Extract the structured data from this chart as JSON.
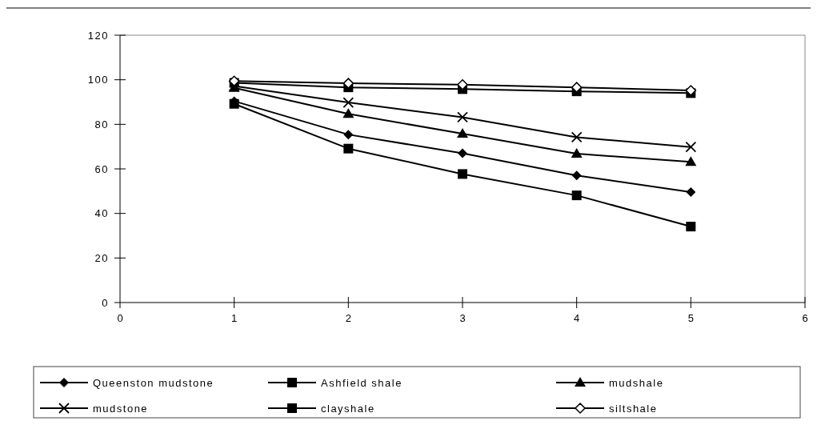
{
  "chart_data": {
    "type": "line",
    "x": [
      1,
      2,
      3,
      4,
      5
    ],
    "xlim": [
      0,
      6
    ],
    "xticks": [
      0,
      1,
      2,
      3,
      4,
      5,
      6
    ],
    "ylim": [
      0,
      120
    ],
    "yticks": [
      0,
      20,
      40,
      60,
      80,
      100,
      120
    ],
    "grid": false,
    "legend": "bottom",
    "line_style": "solid",
    "series": [
      {
        "name": "Queenston mudstone",
        "color": "#000000",
        "marker": "diamond",
        "values": [
          90.4,
          75.4,
          67.0,
          57.0,
          49.6
        ]
      },
      {
        "name": "Ashfield shale",
        "color": "#000000",
        "marker": "square",
        "values": [
          98.6,
          96.6,
          95.8,
          94.8,
          94.0
        ]
      },
      {
        "name": "mudshale",
        "color": "#000000",
        "marker": "triangle",
        "values": [
          96.4,
          84.7,
          75.8,
          66.8,
          63.1
        ]
      },
      {
        "name": "mudstone",
        "color": "#000000",
        "marker": "cross",
        "values": [
          97.2,
          89.8,
          83.2,
          74.2,
          69.8
        ]
      },
      {
        "name": "clayshale",
        "color": "#000000",
        "marker": "square",
        "values": [
          89.2,
          69.1,
          57.7,
          48.1,
          34.1
        ]
      },
      {
        "name": "siltshale",
        "color": "#000000",
        "marker": "diamond_open",
        "values": [
          99.4,
          98.4,
          97.8,
          96.6,
          95.2
        ]
      }
    ]
  }
}
